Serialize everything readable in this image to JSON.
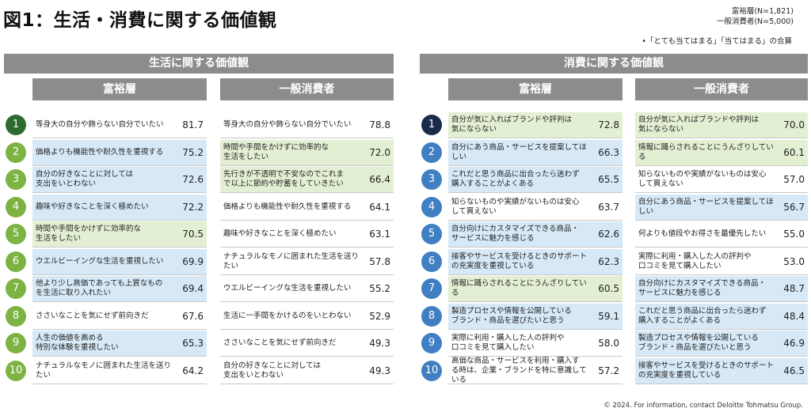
{
  "page": {
    "title": "図1：生活・消費に関する価値観",
    "legend_line1": "富裕層(N=1,821)",
    "legend_line2": "一般消費者(N=5,000)",
    "note": "•「とても当てはまる」「当てはまる」の合算",
    "footer": "© 2024. For information, contact Deloitte Tohmatsu Group."
  },
  "colors": {
    "header_gray": "#8c8c8c",
    "highlight_blue": "#d7e9f7",
    "highlight_green": "#e3efd3",
    "rank_green": "#7cb342",
    "rank_dark_green": "#2e6b30",
    "rank_navy": "#1b2a4a",
    "rank_blue": "#3f7fc2"
  },
  "left": {
    "header": "生活に関する価値観",
    "wealthy_header": "富裕層",
    "general_header": "一般消費者",
    "ranks": [
      "1",
      "2",
      "3",
      "4",
      "5",
      "6",
      "7",
      "8",
      "9",
      "10"
    ],
    "wealthy": [
      {
        "text": "等身大の自分や飾らない自分でいたい",
        "value": "81.7",
        "bg": "none"
      },
      {
        "text": "価格よりも機能性や耐久性を重視する",
        "value": "75.2",
        "bg": "blue"
      },
      {
        "text": "自分の好きなことに対しては\n支出をいとわない",
        "value": "72.6",
        "bg": "blue"
      },
      {
        "text": "趣味や好きなことを深く極めたい",
        "value": "72.2",
        "bg": "blue"
      },
      {
        "text": "時間や手間をかけずに効率的な\n生活をしたい",
        "value": "70.5",
        "bg": "green"
      },
      {
        "text": "ウエルビーイングな生活を重視したい",
        "value": "69.9",
        "bg": "blue"
      },
      {
        "text": "他より少し高価であっても上質なもの\nを生活に取り入れたい",
        "value": "69.4",
        "bg": "blue"
      },
      {
        "text": "ささいなことを気にせず前向きだ",
        "value": "67.6",
        "bg": "none"
      },
      {
        "text": "人生の価値を高める\n特別な体験を重視したい",
        "value": "65.3",
        "bg": "blue"
      },
      {
        "text": "ナチュラルなモノに囲まれた生活を送りたい",
        "value": "64.2",
        "bg": "none"
      }
    ],
    "general": [
      {
        "text": "等身大の自分や飾らない自分でいたい",
        "value": "78.8",
        "bg": "none"
      },
      {
        "text": "時間や手間をかけずに効率的な\n生活をしたい",
        "value": "72.0",
        "bg": "green"
      },
      {
        "text": "先行きが不透明で不安なのでこれま\nで以上に節約や貯蓄をしていきたい",
        "value": "66.4",
        "bg": "green"
      },
      {
        "text": "価格よりも機能性や耐久性を重視する",
        "value": "64.1",
        "bg": "none"
      },
      {
        "text": "趣味や好きなことを深く極めたい",
        "value": "63.1",
        "bg": "none"
      },
      {
        "text": "ナチュラルなモノに囲まれた生活を送りたい",
        "value": "57.8",
        "bg": "none"
      },
      {
        "text": "ウエルビーイングな生活を重視したい",
        "value": "55.2",
        "bg": "none"
      },
      {
        "text": "生活に一手間をかけるのをいとわない",
        "value": "52.9",
        "bg": "none"
      },
      {
        "text": "ささいなことを気にせず前向きだ",
        "value": "49.3",
        "bg": "none"
      },
      {
        "text": "自分の好きなことに対しては\n支出をいとわない",
        "value": "49.3",
        "bg": "none"
      }
    ]
  },
  "right": {
    "header": "消費に関する価値観",
    "wealthy_header": "富裕層",
    "general_header": "一般消費者",
    "ranks": [
      "1",
      "2",
      "3",
      "4",
      "5",
      "6",
      "7",
      "8",
      "9",
      "10"
    ],
    "wealthy": [
      {
        "text": "自分が気に入ればブランドや評判は\n気にならない",
        "value": "72.8",
        "bg": "green"
      },
      {
        "text": "自分にあう商品・サービスを提案してほしい",
        "value": "66.3",
        "bg": "blue"
      },
      {
        "text": "これだと思う商品に出合ったら迷わず\n購入することがよくある",
        "value": "65.5",
        "bg": "blue"
      },
      {
        "text": "知らないものや実績がないものは安心\nして買えない",
        "value": "63.7",
        "bg": "none"
      },
      {
        "text": "自分向けにカスタマイズできる商品・\nサービスに魅力を感じる",
        "value": "62.6",
        "bg": "blue"
      },
      {
        "text": "接客やサービスを受けるときのサポート\nの充実度を重視している",
        "value": "62.3",
        "bg": "blue"
      },
      {
        "text": "情報に踊らされることにうんざりしている",
        "value": "60.5",
        "bg": "green"
      },
      {
        "text": "製造プロセスや情報を公開している\nブランド・商品を選びたいと思う",
        "value": "59.1",
        "bg": "blue"
      },
      {
        "text": "実際に利用・購入した人の評判や\n口コミを見て購入したい",
        "value": "58.0",
        "bg": "none"
      },
      {
        "text": "高価な商品・サービスを利用・購入す\nる時は、企業・ブランドを特に意識して\nいる",
        "value": "57.2",
        "bg": "none"
      }
    ],
    "general": [
      {
        "text": "自分が気に入ればブランドや評判は\n気にならない",
        "value": "70.0",
        "bg": "green"
      },
      {
        "text": "情報に踊らされることにうんざりしている",
        "value": "60.1",
        "bg": "green"
      },
      {
        "text": "知らないものや実績がないものは安心\nして買えない",
        "value": "57.0",
        "bg": "none"
      },
      {
        "text": "自分にあう商品・サービスを提案してほしい",
        "value": "56.7",
        "bg": "blue"
      },
      {
        "text": "何よりも値段やお得さを最優先したい",
        "value": "55.0",
        "bg": "none"
      },
      {
        "text": "実際に利用・購入した人の評判や\n口コミを見て購入したい",
        "value": "53.0",
        "bg": "none"
      },
      {
        "text": "自分向けにカスタマイズできる商品・\nサービスに魅力を感じる",
        "value": "48.7",
        "bg": "blue"
      },
      {
        "text": "これだと思う商品に出合ったら迷わず\n購入することがよくある",
        "value": "48.4",
        "bg": "blue"
      },
      {
        "text": "製造プロセスや情報を公開している\nブランド・商品を選びたいと思う",
        "value": "46.9",
        "bg": "blue"
      },
      {
        "text": "接客やサービスを受けるときのサポート\nの充実度を重視している",
        "value": "46.5",
        "bg": "blue"
      }
    ]
  }
}
